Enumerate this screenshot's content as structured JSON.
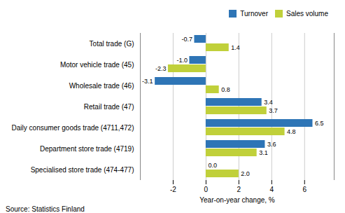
{
  "chart_data": {
    "type": "bar",
    "orientation": "horizontal",
    "categories": [
      "Specialised store trade (474-477)",
      "Department store trade (4719)",
      "Daily consumer goods trade (4711,472)",
      "Retail trade (47)",
      "Wholesale trade (46)",
      "Motor vehicle trade (45)",
      "Total trade (G)"
    ],
    "series": [
      {
        "name": "Turnover",
        "color": "#2e75b6",
        "values": [
          0.0,
          3.6,
          6.5,
          3.4,
          -3.1,
          -1.0,
          -0.7
        ],
        "value_labels": [
          "0.0",
          "3.6",
          "6.5",
          "3.4",
          "-3.1",
          "-1.0",
          "-0.7"
        ]
      },
      {
        "name": "Sales volume",
        "color": "#c0d03a",
        "values": [
          2.0,
          3.1,
          4.8,
          3.7,
          0.8,
          -2.3,
          1.4
        ],
        "value_labels": [
          "2.0",
          "3.1",
          "4.8",
          "3.7",
          "0.8",
          "-2.3",
          "1.4"
        ]
      }
    ],
    "xlabel": "Year-on-year change, %",
    "source": "Source: Statistics Finland",
    "xlim": [
      -4,
      7.8
    ],
    "xticks": [
      -2,
      0,
      2,
      4,
      6
    ],
    "grid": true,
    "legend": "upper right",
    "data_labels": true
  }
}
